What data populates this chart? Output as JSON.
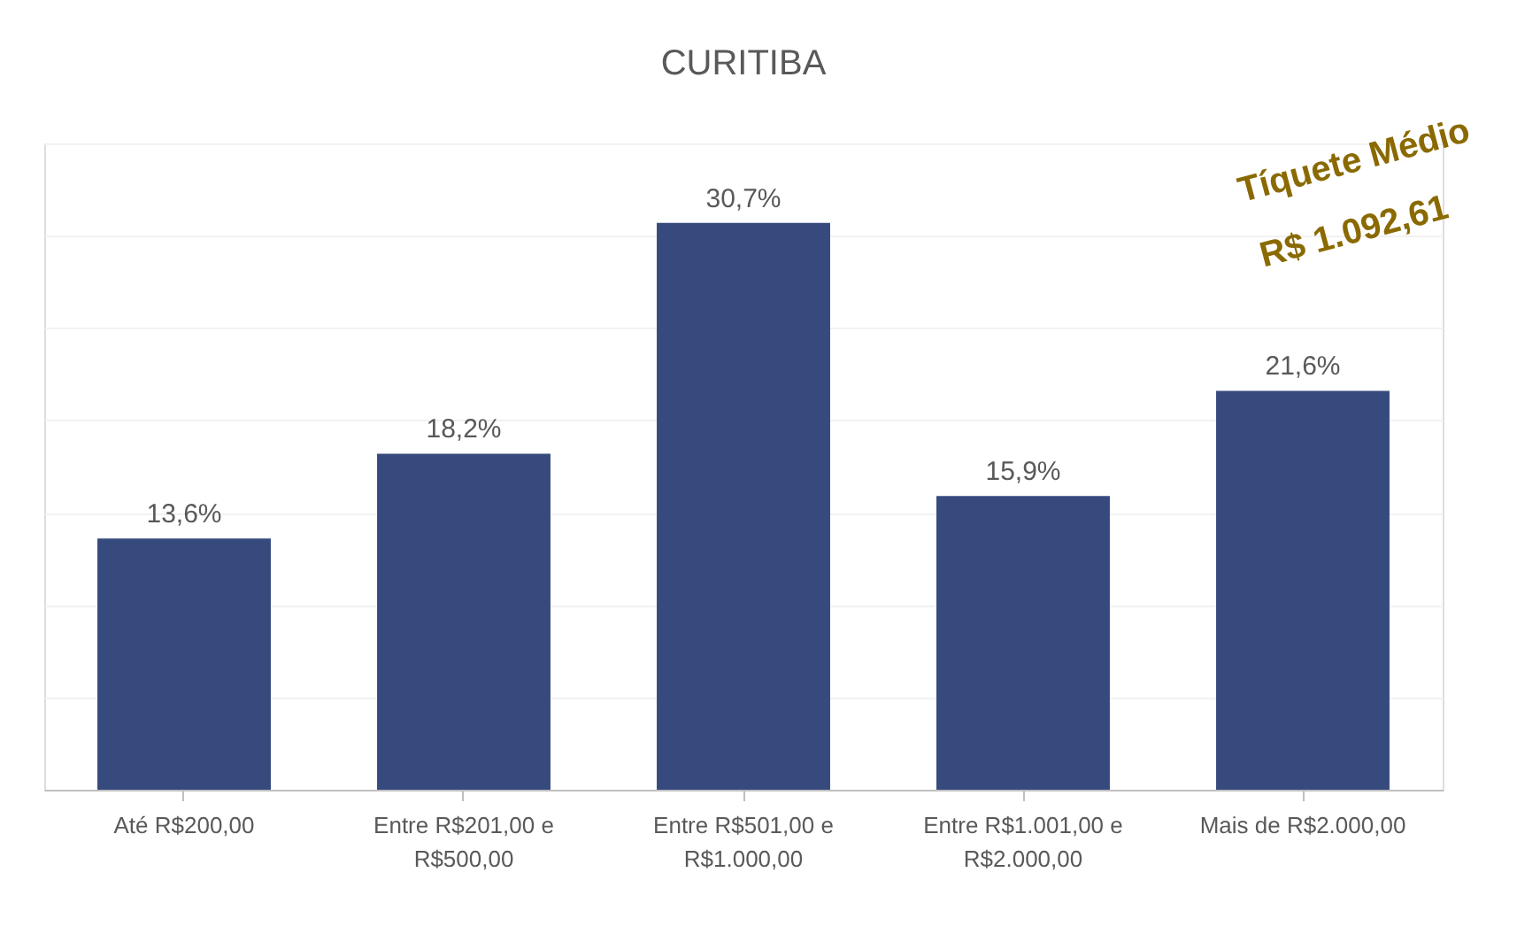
{
  "chart_data": {
    "type": "bar",
    "title": "CURITIBA",
    "categories": [
      "Até R$200,00",
      "Entre R$201,00 e R$500,00",
      "Entre R$501,00 e R$1.000,00",
      "Entre R$1.001,00 e R$2.000,00",
      "Mais de R$2.000,00"
    ],
    "values": [
      13.6,
      18.2,
      30.7,
      15.9,
      21.6
    ],
    "value_labels": [
      "13,6%",
      "18,2%",
      "30,7%",
      "15,9%",
      "21,6%"
    ],
    "color": "#374a7e",
    "ylim": [
      0,
      35
    ],
    "yticks": [
      0,
      5,
      10,
      15,
      20,
      25,
      30,
      35
    ],
    "grid": "y",
    "tick_labels": "x",
    "annotations": [
      "Tíquete Médio",
      "R$ 1.092,61"
    ]
  }
}
